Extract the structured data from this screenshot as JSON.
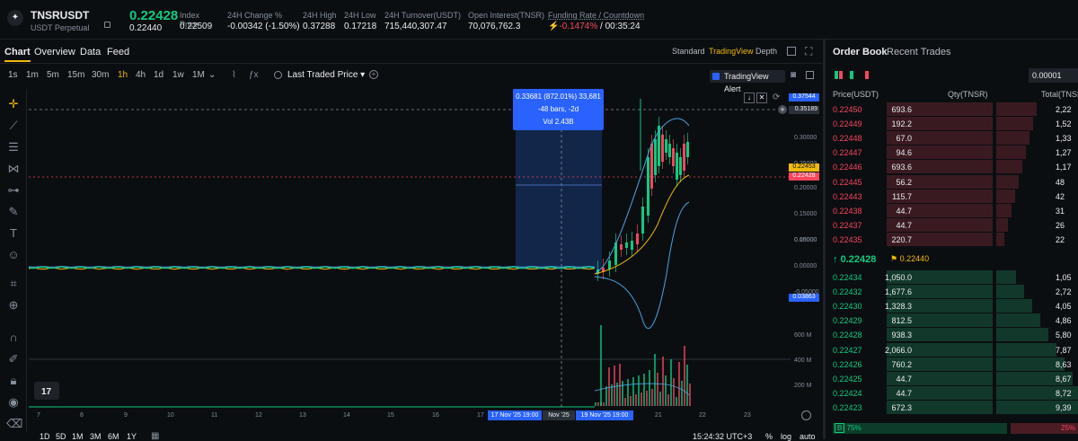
{
  "header": {
    "symbol": "TNSRUSDT",
    "type": "USDT Perpetual",
    "last_price": "0.22428",
    "mark_price": "0.22440",
    "stats": [
      {
        "label": "Index Price",
        "value": "0.22509",
        "color": "#eaecef"
      },
      {
        "label": "24H Change %",
        "value": "-0.00342 (-1.50%)",
        "color": "#f6465d"
      },
      {
        "label": "24H High",
        "value": "0.37288",
        "color": "#eaecef"
      },
      {
        "label": "24H Low",
        "value": "0.17218",
        "color": "#eaecef"
      },
      {
        "label": "24H Turnover(USDT)",
        "value": "715,440,307.47",
        "color": "#eaecef"
      },
      {
        "label": "Open Interest(TNSR)",
        "value": "70,076,762.3",
        "color": "#eaecef"
      }
    ],
    "funding": {
      "label": "Funding Rate / Countdown",
      "rate": "-0.1474%",
      "countdown": "/ 00:35:24"
    }
  },
  "tabs": {
    "chart": "Chart",
    "overview": "Overview",
    "data": "Data",
    "feed": "Feed",
    "standard": "Standard",
    "tradingview": "TradingView",
    "depth": "Depth"
  },
  "intervals": [
    "1s",
    "1m",
    "5m",
    "15m",
    "30m",
    "1h",
    "4h",
    "1d",
    "1w",
    "1M"
  ],
  "active_interval": "1h",
  "toolbar": {
    "price_type": "Last Traded Price",
    "alert": "TradingView Alert"
  },
  "measure": {
    "line1": "0.33681 (872.01%) 33,681",
    "line2": "-48 bars, -2d",
    "line3": "Vol 2.43B"
  },
  "y_axis": [
    "0.30000",
    "0.25000",
    "0.20000",
    "0.15000",
    "0.10000",
    "0.05000",
    "0.00000",
    "-0.05000"
  ],
  "price_tags": {
    "top": "0.37544",
    "cross": "0.35189",
    "last1": "0.22453",
    "last2": "0.22428",
    "low": "0.03863"
  },
  "vol_axis": [
    "600 M",
    "400 M",
    "200 M"
  ],
  "x_axis": [
    "7",
    "8",
    "9",
    "10",
    "11",
    "12",
    "13",
    "14",
    "15",
    "16",
    "17",
    "18",
    "19",
    "20",
    "21",
    "22",
    "23"
  ],
  "x_range": {
    "start": "17 Nov '25 19:00",
    "mid": "Nov '25",
    "end": "19 Nov '25 19:00"
  },
  "bottom": {
    "ranges": [
      "1D",
      "5D",
      "1M",
      "3M",
      "6M",
      "1Y"
    ],
    "time": "15:24:32 UTC+3",
    "pct": "%",
    "log": "log",
    "auto": "auto"
  },
  "orderbook": {
    "tab1": "Order Book",
    "tab2": "Recent Trades",
    "step": "0.00001",
    "col_price": "Price(USDT)",
    "col_qty": "Qty(TNSR)",
    "col_total": "Total(TNSR)",
    "asks": [
      [
        "0.22450",
        "693.6",
        "2,22"
      ],
      [
        "0.22449",
        "192.2",
        "1,52"
      ],
      [
        "0.22448",
        "67.0",
        "1,33"
      ],
      [
        "0.22447",
        "94.6",
        "1,27"
      ],
      [
        "0.22446",
        "693.6",
        "1,17"
      ],
      [
        "0.22445",
        "56.2",
        "48"
      ],
      [
        "0.22443",
        "115.7",
        "42"
      ],
      [
        "0.22438",
        "44.7",
        "31"
      ],
      [
        "0.22437",
        "44.7",
        "26"
      ],
      [
        "0.22435",
        "220.7",
        "22"
      ]
    ],
    "mid_price": "0.22428",
    "mid_mark": "0.22440",
    "bids": [
      [
        "0.22434",
        "1,050.0",
        "1,05"
      ],
      [
        "0.22432",
        "1,677.6",
        "2,72"
      ],
      [
        "0.22430",
        "1,328.3",
        "4,05"
      ],
      [
        "0.22429",
        "812.5",
        "4,86"
      ],
      [
        "0.22428",
        "938.3",
        "5,80"
      ],
      [
        "0.22427",
        "2,066.0",
        "7,87"
      ],
      [
        "0.22426",
        "760.2",
        "8,63"
      ],
      [
        "0.22425",
        "44.7",
        "8,67"
      ],
      [
        "0.22424",
        "44.7",
        "8,72"
      ],
      [
        "0.22423",
        "672.3",
        "9,39"
      ]
    ],
    "ratio_buy": "75%",
    "ratio_sell": "25%"
  }
}
